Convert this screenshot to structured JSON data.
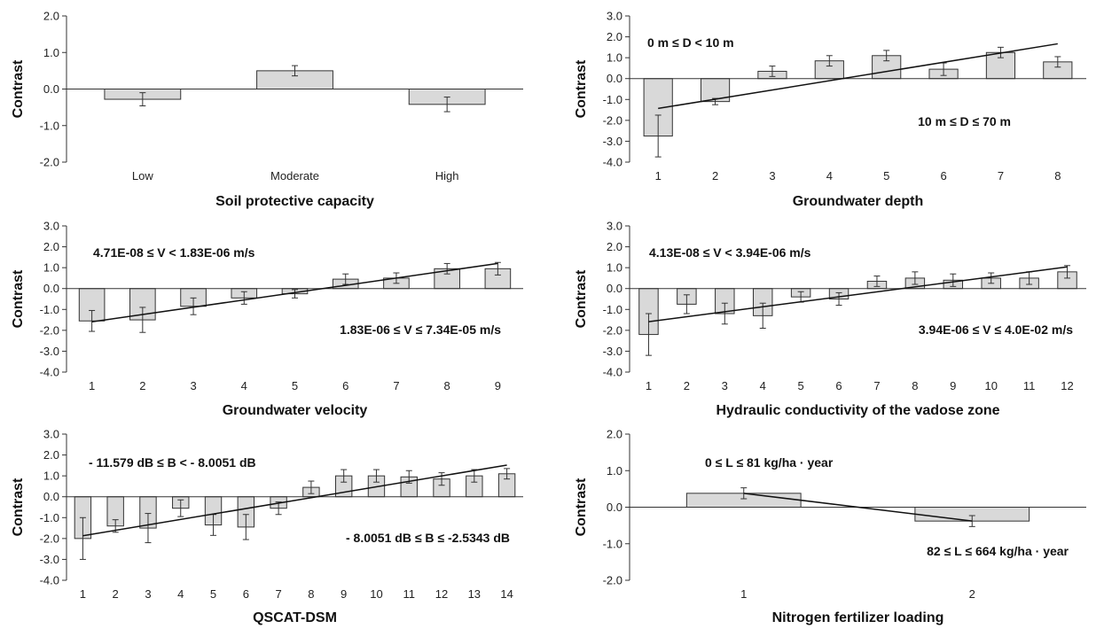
{
  "chart_data": [
    {
      "type": "bar",
      "xlabel": "Soil protective capacity",
      "ylabel": "Contrast",
      "ylim": [
        -2,
        2
      ],
      "yticks": [
        "2.0",
        "1.0",
        "0.0",
        "-1.0",
        "-2.0"
      ],
      "categories": [
        "Low",
        "Moderate",
        "High"
      ],
      "values": [
        -0.28,
        0.5,
        -0.42
      ],
      "errors": [
        0.18,
        0.14,
        0.2
      ],
      "trendline": false,
      "annotations": []
    },
    {
      "type": "bar",
      "xlabel": "Groundwater depth",
      "ylabel": "Contrast",
      "ylim": [
        -4,
        3
      ],
      "yticks": [
        "3.0",
        "2.0",
        "1.0",
        "0.0",
        "-1.0",
        "-2.0",
        "-3.0",
        "-4.0"
      ],
      "categories": [
        "1",
        "2",
        "3",
        "4",
        "5",
        "6",
        "7",
        "8"
      ],
      "values": [
        -2.75,
        -1.1,
        0.35,
        0.85,
        1.1,
        0.45,
        1.25,
        0.8
      ],
      "errors": [
        1.0,
        0.15,
        0.25,
        0.25,
        0.25,
        0.3,
        0.25,
        0.25
      ],
      "trendline": true,
      "annotations": [
        {
          "text": "0 m ≤ D < 10 m",
          "pos": "top-left"
        },
        {
          "text": "10 m ≤ D ≤ 70 m",
          "pos": "bottom-right"
        }
      ]
    },
    {
      "type": "bar",
      "xlabel": "Groundwater velocity",
      "ylabel": "Contrast",
      "ylim": [
        -4,
        3
      ],
      "yticks": [
        "3.0",
        "2.0",
        "1.0",
        "0.0",
        "-1.0",
        "-2.0",
        "-3.0",
        "-4.0"
      ],
      "categories": [
        "1",
        "2",
        "3",
        "4",
        "5",
        "6",
        "7",
        "8",
        "9"
      ],
      "values": [
        -1.55,
        -1.5,
        -0.85,
        -0.45,
        -0.25,
        0.45,
        0.5,
        0.95,
        0.95
      ],
      "errors": [
        0.5,
        0.6,
        0.4,
        0.3,
        0.2,
        0.25,
        0.25,
        0.25,
        0.3
      ],
      "trendline": true,
      "annotations": [
        {
          "text": "4.71E-08 ≤ V < 1.83E-06 m/s",
          "pos": "top-left"
        },
        {
          "text": "1.83E-06 ≤ V ≤ 7.34E-05 m/s",
          "pos": "bottom-right"
        }
      ]
    },
    {
      "type": "bar",
      "xlabel": "Hydraulic conductivity of the vadose zone",
      "ylabel": "Contrast",
      "ylim": [
        -4,
        3
      ],
      "yticks": [
        "3.0",
        "2.0",
        "1.0",
        "0.0",
        "-1.0",
        "-2.0",
        "-3.0",
        "-4.0"
      ],
      "categories": [
        "1",
        "2",
        "3",
        "4",
        "5",
        "6",
        "7",
        "8",
        "9",
        "10",
        "11",
        "12"
      ],
      "values": [
        -2.2,
        -0.75,
        -1.2,
        -1.3,
        -0.4,
        -0.5,
        0.35,
        0.5,
        0.4,
        0.5,
        0.5,
        0.8
      ],
      "errors": [
        1.0,
        0.45,
        0.5,
        0.6,
        0.25,
        0.3,
        0.25,
        0.3,
        0.3,
        0.25,
        0.3,
        0.3
      ],
      "trendline": true,
      "annotations": [
        {
          "text": "4.13E-08 ≤ V < 3.94E-06 m/s",
          "pos": "top-left"
        },
        {
          "text": "3.94E-06 ≤ V ≤ 4.0E-02 m/s",
          "pos": "bottom-right"
        }
      ]
    },
    {
      "type": "bar",
      "xlabel": "QSCAT-DSM",
      "ylabel": "Contrast",
      "ylim": [
        -4,
        3
      ],
      "yticks": [
        "3.0",
        "2.0",
        "1.0",
        "0.0",
        "-1.0",
        "-2.0",
        "-3.0",
        "-4.0"
      ],
      "categories": [
        "1",
        "2",
        "3",
        "4",
        "5",
        "6",
        "7",
        "8",
        "9",
        "10",
        "11",
        "12",
        "13",
        "14"
      ],
      "values": [
        -2.0,
        -1.4,
        -1.5,
        -0.55,
        -1.35,
        -1.45,
        -0.55,
        0.45,
        1.0,
        1.0,
        0.95,
        0.85,
        1.0,
        1.1
      ],
      "errors": [
        1.0,
        0.3,
        0.7,
        0.4,
        0.5,
        0.6,
        0.3,
        0.3,
        0.3,
        0.3,
        0.3,
        0.3,
        0.3,
        0.25
      ],
      "trendline": true,
      "annotations": [
        {
          "text": "- 11.579 dB ≤ B < - 8.0051 dB",
          "pos": "top-left"
        },
        {
          "text": "- 8.0051 dB ≤ B ≤ -2.5343 dB",
          "pos": "bottom-right"
        }
      ]
    },
    {
      "type": "bar",
      "xlabel": "Nitrogen fertilizer loading",
      "ylabel": "Contrast",
      "ylim": [
        -2,
        2
      ],
      "yticks": [
        "2.0",
        "1.0",
        "0.0",
        "-1.0",
        "-2.0"
      ],
      "categories": [
        "1",
        "2"
      ],
      "values": [
        0.38,
        -0.38
      ],
      "errors": [
        0.15,
        0.15
      ],
      "trendline": true,
      "annotations": [
        {
          "text": "0 ≤ L ≤ 81 kg/ha · year",
          "pos": "top-left"
        },
        {
          "text": "82 ≤ L ≤ 664 kg/ha · year",
          "pos": "bottom-right"
        }
      ]
    }
  ]
}
